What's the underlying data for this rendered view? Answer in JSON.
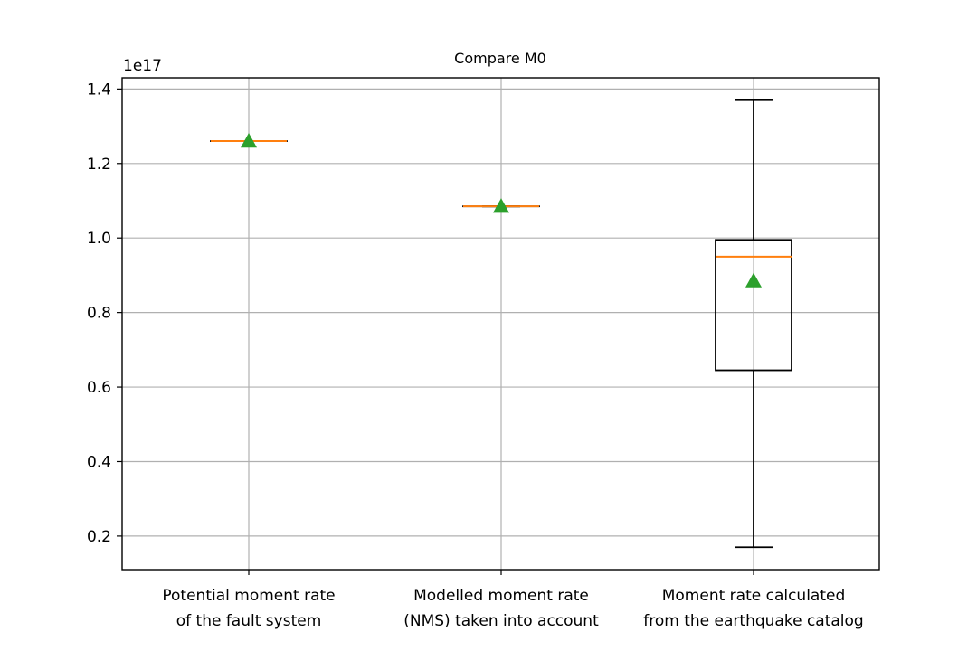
{
  "chart_data": {
    "type": "box",
    "title": "Compare M0",
    "offset_label": "1e17",
    "xlabel": "",
    "ylabel": "",
    "ylim": [
      0.11,
      1.43
    ],
    "yticks": [
      0.2,
      0.4,
      0.6,
      0.8,
      1.0,
      1.2,
      1.4
    ],
    "ytick_labels": [
      "0.2",
      "0.4",
      "0.6",
      "0.8",
      "1.0",
      "1.2",
      "1.4"
    ],
    "grid": true,
    "categories": [
      [
        "Potential moment rate",
        "of the fault system"
      ],
      [
        "Modelled moment rate",
        "(NMS) taken into account"
      ],
      [
        "Moment rate calculated",
        "from the earthquake catalog"
      ]
    ],
    "boxes": [
      {
        "whislo": 1.26,
        "q1": 1.26,
        "med": 1.26,
        "q3": 1.26,
        "whishi": 1.26,
        "mean": 1.26
      },
      {
        "whislo": 1.085,
        "q1": 1.085,
        "med": 1.085,
        "q3": 1.085,
        "whishi": 1.085,
        "mean": 1.085
      },
      {
        "whislo": 0.17,
        "q1": 0.645,
        "med": 0.95,
        "q3": 0.995,
        "whishi": 1.37,
        "mean": 0.885
      }
    ],
    "colors": {
      "box": "#000000",
      "median": "#ff7f0e",
      "mean": "#2ca02c",
      "grid": "#b0b0b0"
    }
  }
}
